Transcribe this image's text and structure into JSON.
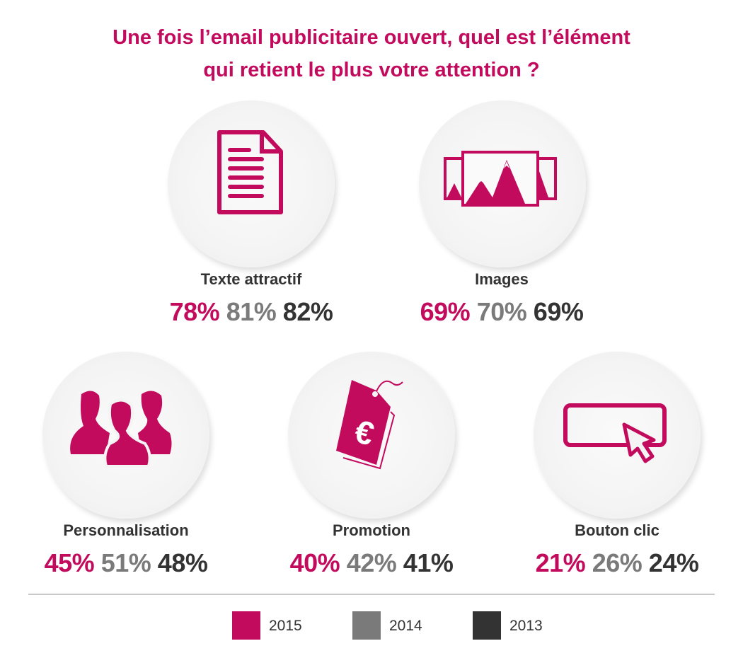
{
  "title_line1": "Une fois l’email publicitaire ouvert, quel est l’élément",
  "title_line2": "qui retient le plus votre attention ?",
  "colors": {
    "2015": "#c30b5d",
    "2014": "#7a7a7a",
    "2013": "#333333"
  },
  "chart_data": {
    "type": "table",
    "title": "Une fois l’email publicitaire ouvert, quel est l’élément qui retient le plus votre attention ?",
    "legend": [
      "2015",
      "2014",
      "2013"
    ],
    "legend_placement": "bottom",
    "items": [
      {
        "label": "Texte attractif",
        "icon": "document-icon",
        "values": [
          "78%",
          "81%",
          "82%"
        ]
      },
      {
        "label": "Images",
        "icon": "images-icon",
        "values": [
          "69%",
          "70%",
          "69%"
        ]
      },
      {
        "label": "Personnalisation",
        "icon": "people-icon",
        "values": [
          "45%",
          "51%",
          "48%"
        ]
      },
      {
        "label": "Promotion",
        "icon": "euro-price-tag-icon",
        "values": [
          "40%",
          "42%",
          "41%"
        ]
      },
      {
        "label": "Bouton clic",
        "icon": "button-cursor-icon",
        "values": [
          "21%",
          "26%",
          "24%"
        ]
      }
    ]
  }
}
